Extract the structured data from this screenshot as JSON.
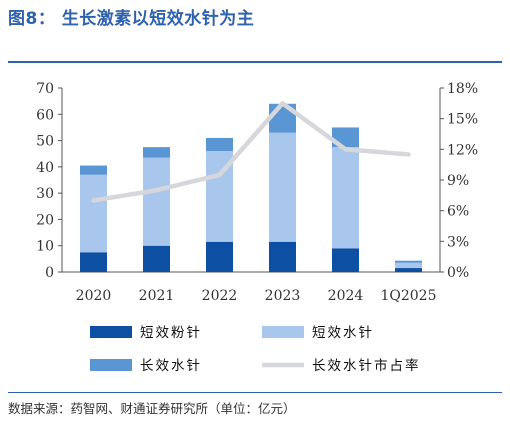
{
  "header": {
    "title": "图8： 生长激素以短效水针为主"
  },
  "footer": {
    "source": "数据来源：药智网、财通证券研究所（单位：亿元）"
  },
  "chart_data": {
    "type": "bar",
    "stacked": true,
    "categories": [
      "2020",
      "2021",
      "2022",
      "2023",
      "2024",
      "1Q2025"
    ],
    "series": [
      {
        "name": "短效粉针",
        "kind": "bar",
        "axis": "left",
        "color": "#0d4fa3",
        "values": [
          7.5,
          10,
          11.5,
          11.5,
          9,
          1.5
        ]
      },
      {
        "name": "短效水针",
        "kind": "bar",
        "axis": "left",
        "color": "#a9c7ec",
        "values": [
          29.5,
          33.5,
          34.5,
          41.5,
          38.5,
          2
        ]
      },
      {
        "name": "长效水针",
        "kind": "bar",
        "axis": "left",
        "color": "#5b96d4",
        "values": [
          3.5,
          4,
          5,
          11,
          7.5,
          0.8
        ]
      },
      {
        "name": "长效水针市占率",
        "kind": "line",
        "axis": "right",
        "color": "#d5d7da",
        "values": [
          7,
          8,
          9.5,
          16.5,
          12,
          11.5
        ]
      }
    ],
    "y_left": {
      "min": 0,
      "max": 70,
      "step": 10
    },
    "y_right": {
      "min": 0,
      "max": 18,
      "step": 3,
      "unit": "%"
    },
    "grid": false,
    "legend_position": "bottom"
  }
}
